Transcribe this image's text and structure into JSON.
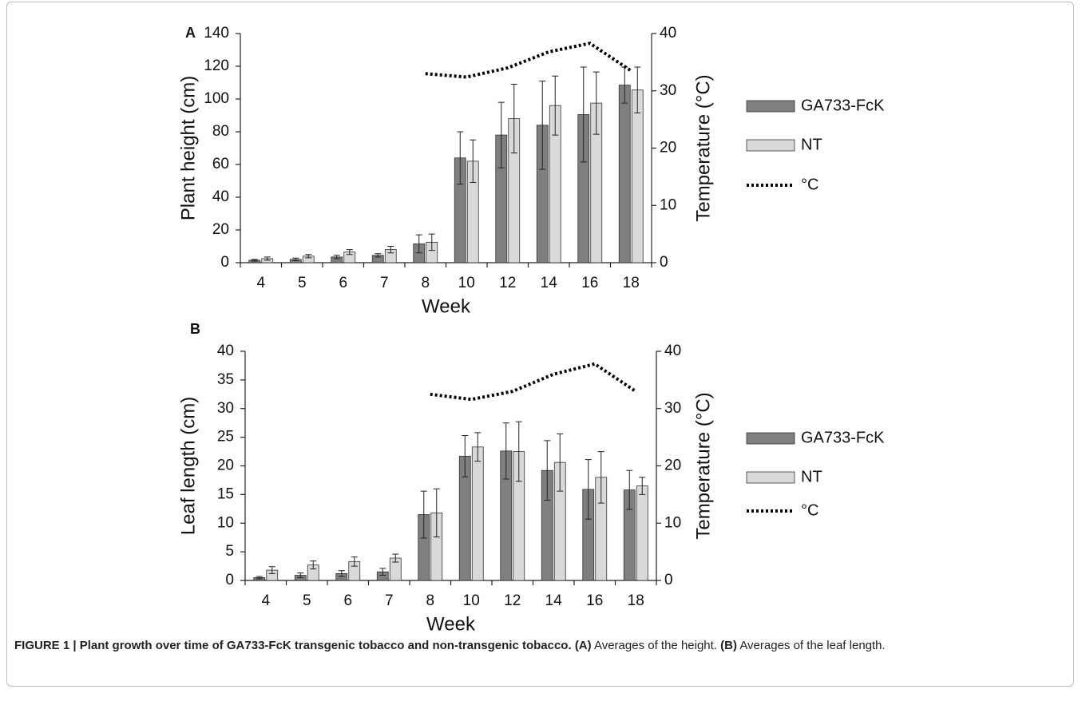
{
  "chart_data": [
    {
      "type": "bar",
      "panel": "A",
      "y_label": "Plant height (cm)",
      "y2_label": "Temperature (°C)",
      "x_label": "Week",
      "categories": [
        "4",
        "5",
        "6",
        "7",
        "8",
        "10",
        "12",
        "14",
        "16",
        "18"
      ],
      "ylim": [
        0,
        140
      ],
      "yticks": [
        0,
        20,
        40,
        60,
        80,
        100,
        120,
        140
      ],
      "y2lim": [
        0,
        40
      ],
      "y2ticks": [
        0,
        10,
        20,
        30,
        40
      ],
      "series": [
        {
          "name": "GA733-FcK",
          "color": "#7f7f7f",
          "values": [
            1.5,
            2,
            3.5,
            4.5,
            11.5,
            64,
            78,
            84,
            90.5,
            108.5
          ],
          "errors": [
            0.5,
            0.8,
            1,
            1,
            5.5,
            16,
            20,
            27,
            29,
            11
          ]
        },
        {
          "name": "NT",
          "color": "#d9d9d9",
          "values": [
            2.5,
            4,
            6.5,
            8,
            12.5,
            62,
            88,
            96,
            97.5,
            105.5
          ],
          "errors": [
            1,
            1,
            1.5,
            2,
            5,
            13,
            21,
            18,
            19,
            14
          ]
        },
        {
          "name": "°C",
          "type": "line",
          "axis": "y2",
          "color": "#000000",
          "line_style": "dotted",
          "values": [
            null,
            null,
            null,
            null,
            33,
            32.4,
            34,
            36.8,
            38.3,
            33.5
          ]
        }
      ]
    },
    {
      "type": "bar",
      "panel": "B",
      "y_label": "Leaf length (cm)",
      "y2_label": "Temperature (°C)",
      "x_label": "Week",
      "categories": [
        "4",
        "5",
        "6",
        "7",
        "8",
        "10",
        "12",
        "14",
        "16",
        "18"
      ],
      "ylim": [
        0,
        40
      ],
      "yticks": [
        0,
        5,
        10,
        15,
        20,
        25,
        30,
        35,
        40
      ],
      "y2lim": [
        0,
        40
      ],
      "y2ticks": [
        0,
        10,
        20,
        30,
        40
      ],
      "series": [
        {
          "name": "GA733-FcK",
          "color": "#7f7f7f",
          "values": [
            0.5,
            0.9,
            1.2,
            1.5,
            11.5,
            21.7,
            22.6,
            19.2,
            15.9,
            15.8
          ],
          "errors": [
            0.2,
            0.4,
            0.5,
            0.6,
            4.1,
            3.6,
            4.9,
            5.2,
            5.2,
            3.4
          ]
        },
        {
          "name": "NT",
          "color": "#d9d9d9",
          "values": [
            1.8,
            2.7,
            3.3,
            3.9,
            11.8,
            23.3,
            22.5,
            20.6,
            18,
            16.5
          ],
          "errors": [
            0.6,
            0.7,
            0.8,
            0.7,
            4.2,
            2.5,
            5.2,
            5,
            4.5,
            1.5
          ]
        },
        {
          "name": "°C",
          "type": "line",
          "axis": "y2",
          "color": "#000000",
          "line_style": "dotted",
          "values": [
            null,
            null,
            null,
            null,
            32.5,
            31.6,
            33,
            36,
            37.8,
            33
          ]
        }
      ]
    }
  ],
  "caption": {
    "title": "FIGURE 1 | Plant growth over time of GA733-FcK transgenic tobacco and non-transgenic tobacco.",
    "parts": [
      {
        "label": "(A)",
        "text": "Averages of the height."
      },
      {
        "label": "(B)",
        "text": "Averages of the leaf length."
      }
    ]
  }
}
